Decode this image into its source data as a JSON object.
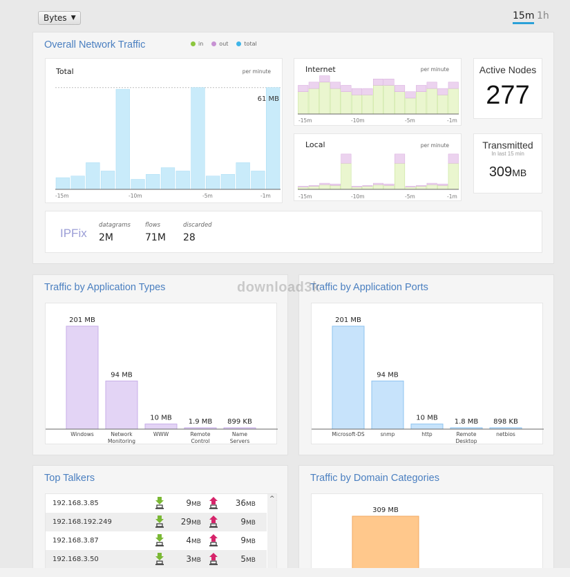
{
  "header": {
    "unit_select": "Bytes",
    "ranges": [
      "15m",
      "1h"
    ],
    "active_range": "15m"
  },
  "overall": {
    "title": "Overall Network Traffic",
    "legend": [
      {
        "label": "in",
        "color": "#8cc63f"
      },
      {
        "label": "out",
        "color": "#c792d3"
      },
      {
        "label": "total",
        "color": "#3fb5e8"
      }
    ],
    "total_chart": {
      "label": "Total",
      "unit": "per minute",
      "peak_label": "61 MB",
      "x_ticks": [
        "-15m",
        "-10m",
        "-5m",
        "-1m"
      ]
    },
    "internet_chart": {
      "label": "Internet",
      "unit": "per minute",
      "x_ticks": [
        "-15m",
        "-10m",
        "-5m",
        "-1m"
      ]
    },
    "local_chart": {
      "label": "Local",
      "unit": "per minute",
      "x_ticks": [
        "-15m",
        "-10m",
        "-5m",
        "-1m"
      ]
    },
    "active_nodes": {
      "label": "Active Nodes",
      "value": "277"
    },
    "transmitted": {
      "label": "Transmitted",
      "sub": "In last 15 min",
      "value": "309",
      "unit": "MB"
    },
    "ipfix": {
      "name": "IPFix",
      "stats": [
        {
          "label": "datagrams",
          "value": "2M"
        },
        {
          "label": "flows",
          "value": "71M"
        },
        {
          "label": "discarded",
          "value": "28"
        }
      ]
    }
  },
  "app_types": {
    "title": "Traffic by Application Types",
    "color": "#e3d4f5",
    "border": "#c7aee8",
    "bars": [
      {
        "label": [
          "Windows"
        ],
        "value_label": "201 MB",
        "value": 201
      },
      {
        "label": [
          "Network",
          "Monitoring"
        ],
        "value_label": "94 MB",
        "value": 94
      },
      {
        "label": [
          "WWW"
        ],
        "value_label": "10 MB",
        "value": 10
      },
      {
        "label": [
          "Remote",
          "Control"
        ],
        "value_label": "1.9 MB",
        "value": 1.9
      },
      {
        "label": [
          "Name",
          "Servers"
        ],
        "value_label": "899 KB",
        "value": 0.899
      }
    ]
  },
  "app_ports": {
    "title": "Traffic by Application Ports",
    "color": "#c7e3fb",
    "border": "#8ec3ef",
    "bars": [
      {
        "label": [
          "Microsoft-DS"
        ],
        "value_label": "201 MB",
        "value": 201
      },
      {
        "label": [
          "snmp"
        ],
        "value_label": "94 MB",
        "value": 94
      },
      {
        "label": [
          "http"
        ],
        "value_label": "10 MB",
        "value": 10
      },
      {
        "label": [
          "Remote",
          "Desktop"
        ],
        "value_label": "1.8 MB",
        "value": 1.8
      },
      {
        "label": [
          "netbios"
        ],
        "value_label": "898 KB",
        "value": 0.898
      }
    ]
  },
  "top_talkers": {
    "title": "Top Talkers",
    "rows": [
      {
        "ip": "192.168.3.85",
        "down": "9",
        "up": "36",
        "unit": "MB"
      },
      {
        "ip": "192.168.192.249",
        "down": "29",
        "up": "9",
        "unit": "MB"
      },
      {
        "ip": "192.168.3.87",
        "down": "4",
        "up": "9",
        "unit": "MB"
      },
      {
        "ip": "192.168.3.50",
        "down": "3",
        "up": "5",
        "unit": "MB"
      }
    ]
  },
  "domains": {
    "title": "Traffic by Domain Categories",
    "bar_label": "309 MB",
    "value": 309,
    "color": "#ffc88c",
    "border": "#f0a860"
  },
  "chart_data": [
    {
      "type": "bar",
      "title": "Total",
      "x": [
        "-15m",
        "-14m",
        "-13m",
        "-12m",
        "-11m",
        "-10m",
        "-9m",
        "-8m",
        "-7m",
        "-6m",
        "-5m",
        "-4m",
        "-3m",
        "-2m",
        "-1m"
      ],
      "values": [
        7,
        8,
        16,
        11,
        60,
        6,
        9,
        13,
        11,
        61,
        8,
        9,
        16,
        11,
        61
      ],
      "ylim": [
        0,
        70
      ],
      "color": "#c9ebfa"
    },
    {
      "type": "bar",
      "title": "Internet",
      "x": [
        "-15m",
        "-14m",
        "-13m",
        "-12m",
        "-11m",
        "-10m",
        "-9m",
        "-8m",
        "-7m",
        "-6m",
        "-5m",
        "-4m",
        "-3m",
        "-2m",
        "-1m"
      ],
      "series": [
        {
          "name": "in",
          "values": [
            7,
            8,
            10,
            8,
            7,
            6,
            6,
            9,
            9,
            7,
            5,
            7,
            8,
            6,
            8
          ]
        },
        {
          "name": "out",
          "values": [
            2,
            2,
            2,
            2,
            2,
            2,
            2,
            2,
            2,
            2,
            2,
            2,
            2,
            2,
            2
          ]
        }
      ],
      "ylim": [
        0,
        13
      ]
    },
    {
      "type": "bar",
      "title": "Local",
      "x": [
        "-15m",
        "-14m",
        "-13m",
        "-12m",
        "-11m",
        "-10m",
        "-9m",
        "-8m",
        "-7m",
        "-6m",
        "-5m",
        "-4m",
        "-3m",
        "-2m",
        "-1m"
      ],
      "series": [
        {
          "name": "in",
          "values": [
            1.5,
            2,
            3,
            2.5,
            17,
            1.5,
            2,
            3,
            2.5,
            17,
            1.5,
            2,
            3,
            2.5,
            17
          ]
        },
        {
          "name": "out",
          "values": [
            0.5,
            0.5,
            1,
            1,
            6,
            0.5,
            0.5,
            1,
            1,
            6,
            0.5,
            0.5,
            1,
            1,
            6
          ]
        }
      ],
      "ylim": [
        0,
        27
      ]
    },
    {
      "type": "bar",
      "title": "Traffic by Application Types",
      "categories": [
        "Windows",
        "Network Monitoring",
        "WWW",
        "Remote Control",
        "Name Servers"
      ],
      "values": [
        201,
        94,
        10,
        1.9,
        0.899
      ],
      "unit": "MB"
    },
    {
      "type": "bar",
      "title": "Traffic by Application Ports",
      "categories": [
        "Microsoft-DS",
        "snmp",
        "http",
        "Remote Desktop",
        "netbios"
      ],
      "values": [
        201,
        94,
        10,
        1.8,
        0.898
      ],
      "unit": "MB"
    },
    {
      "type": "bar",
      "title": "Traffic by Domain Categories",
      "categories": [
        ""
      ],
      "values": [
        309
      ],
      "unit": "MB"
    }
  ],
  "watermark": "download3k"
}
